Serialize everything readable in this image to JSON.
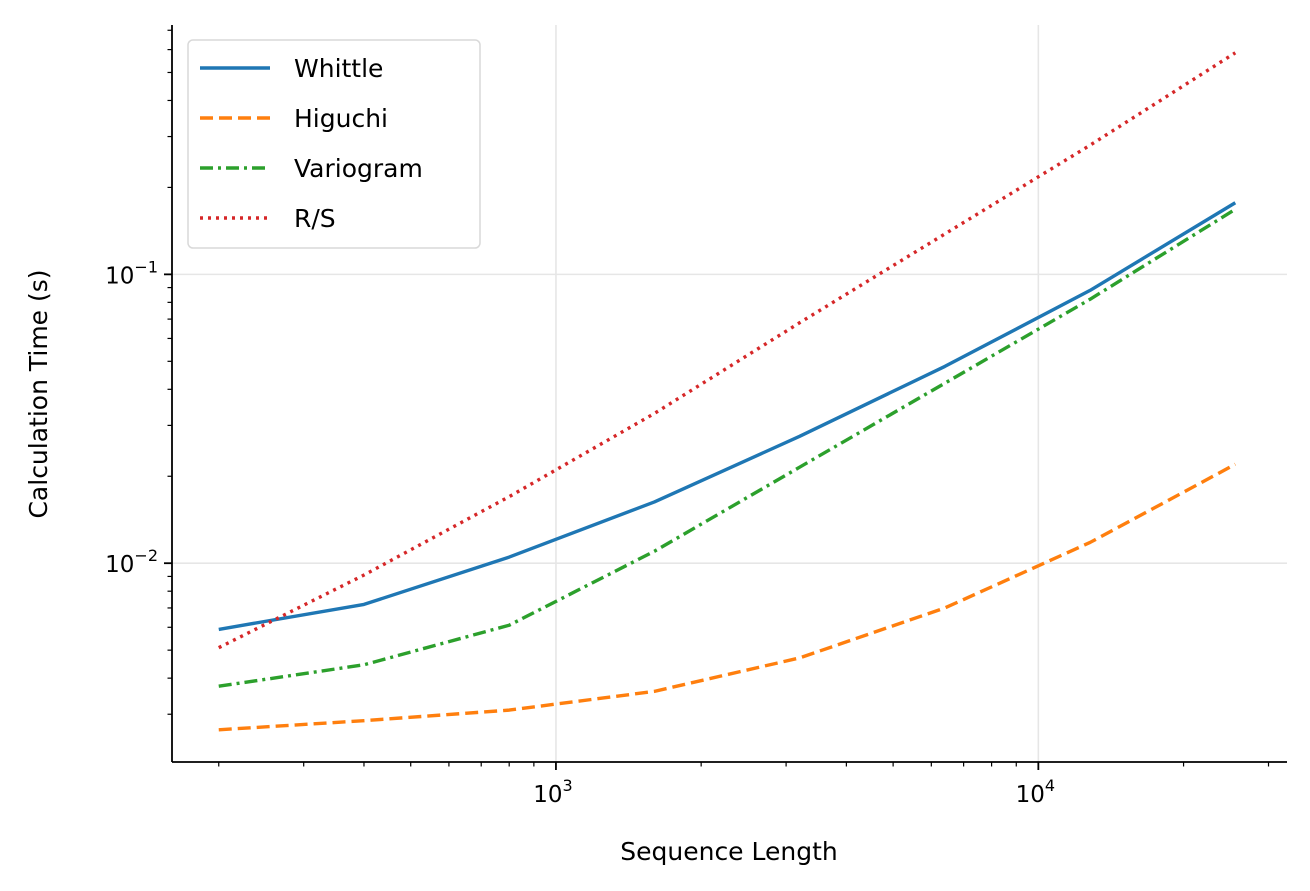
{
  "chart_data": {
    "type": "line",
    "xlabel": "Sequence Length",
    "ylabel": "Calculation Time (s)",
    "xscale": "log",
    "yscale": "log",
    "xlim": [
      160,
      32768
    ],
    "ylim": [
      0.00205,
      0.73
    ],
    "grid": true,
    "legend_position": "top-left",
    "x_ticks": [
      {
        "value": 1000,
        "base": "10",
        "exp": "3"
      },
      {
        "value": 10000,
        "base": "10",
        "exp": "4"
      }
    ],
    "y_ticks": [
      {
        "value": 0.01,
        "base": "10",
        "exp": "−2"
      },
      {
        "value": 0.1,
        "base": "10",
        "exp": "−1"
      }
    ],
    "x": [
      200,
      400,
      800,
      1600,
      3200,
      6400,
      12800,
      25600
    ],
    "series": [
      {
        "name": "Whittle",
        "color": "#1f77b4",
        "dash": "solid",
        "values": [
          0.0059,
          0.0072,
          0.0105,
          0.0163,
          0.0275,
          0.048,
          0.088,
          0.177
        ]
      },
      {
        "name": "Higuchi",
        "color": "#ff7f0e",
        "dash": "dashed",
        "values": [
          0.00265,
          0.00285,
          0.0031,
          0.0036,
          0.0047,
          0.007,
          0.0118,
          0.022
        ]
      },
      {
        "name": "Variogram",
        "color": "#2ca02c",
        "dash": "dashdot",
        "values": [
          0.00375,
          0.00445,
          0.0061,
          0.011,
          0.0215,
          0.042,
          0.082,
          0.168
        ]
      },
      {
        "name": "R/S",
        "color": "#d62728",
        "dash": "dotted",
        "values": [
          0.0051,
          0.0091,
          0.017,
          0.033,
          0.068,
          0.138,
          0.28,
          0.585
        ]
      }
    ]
  }
}
